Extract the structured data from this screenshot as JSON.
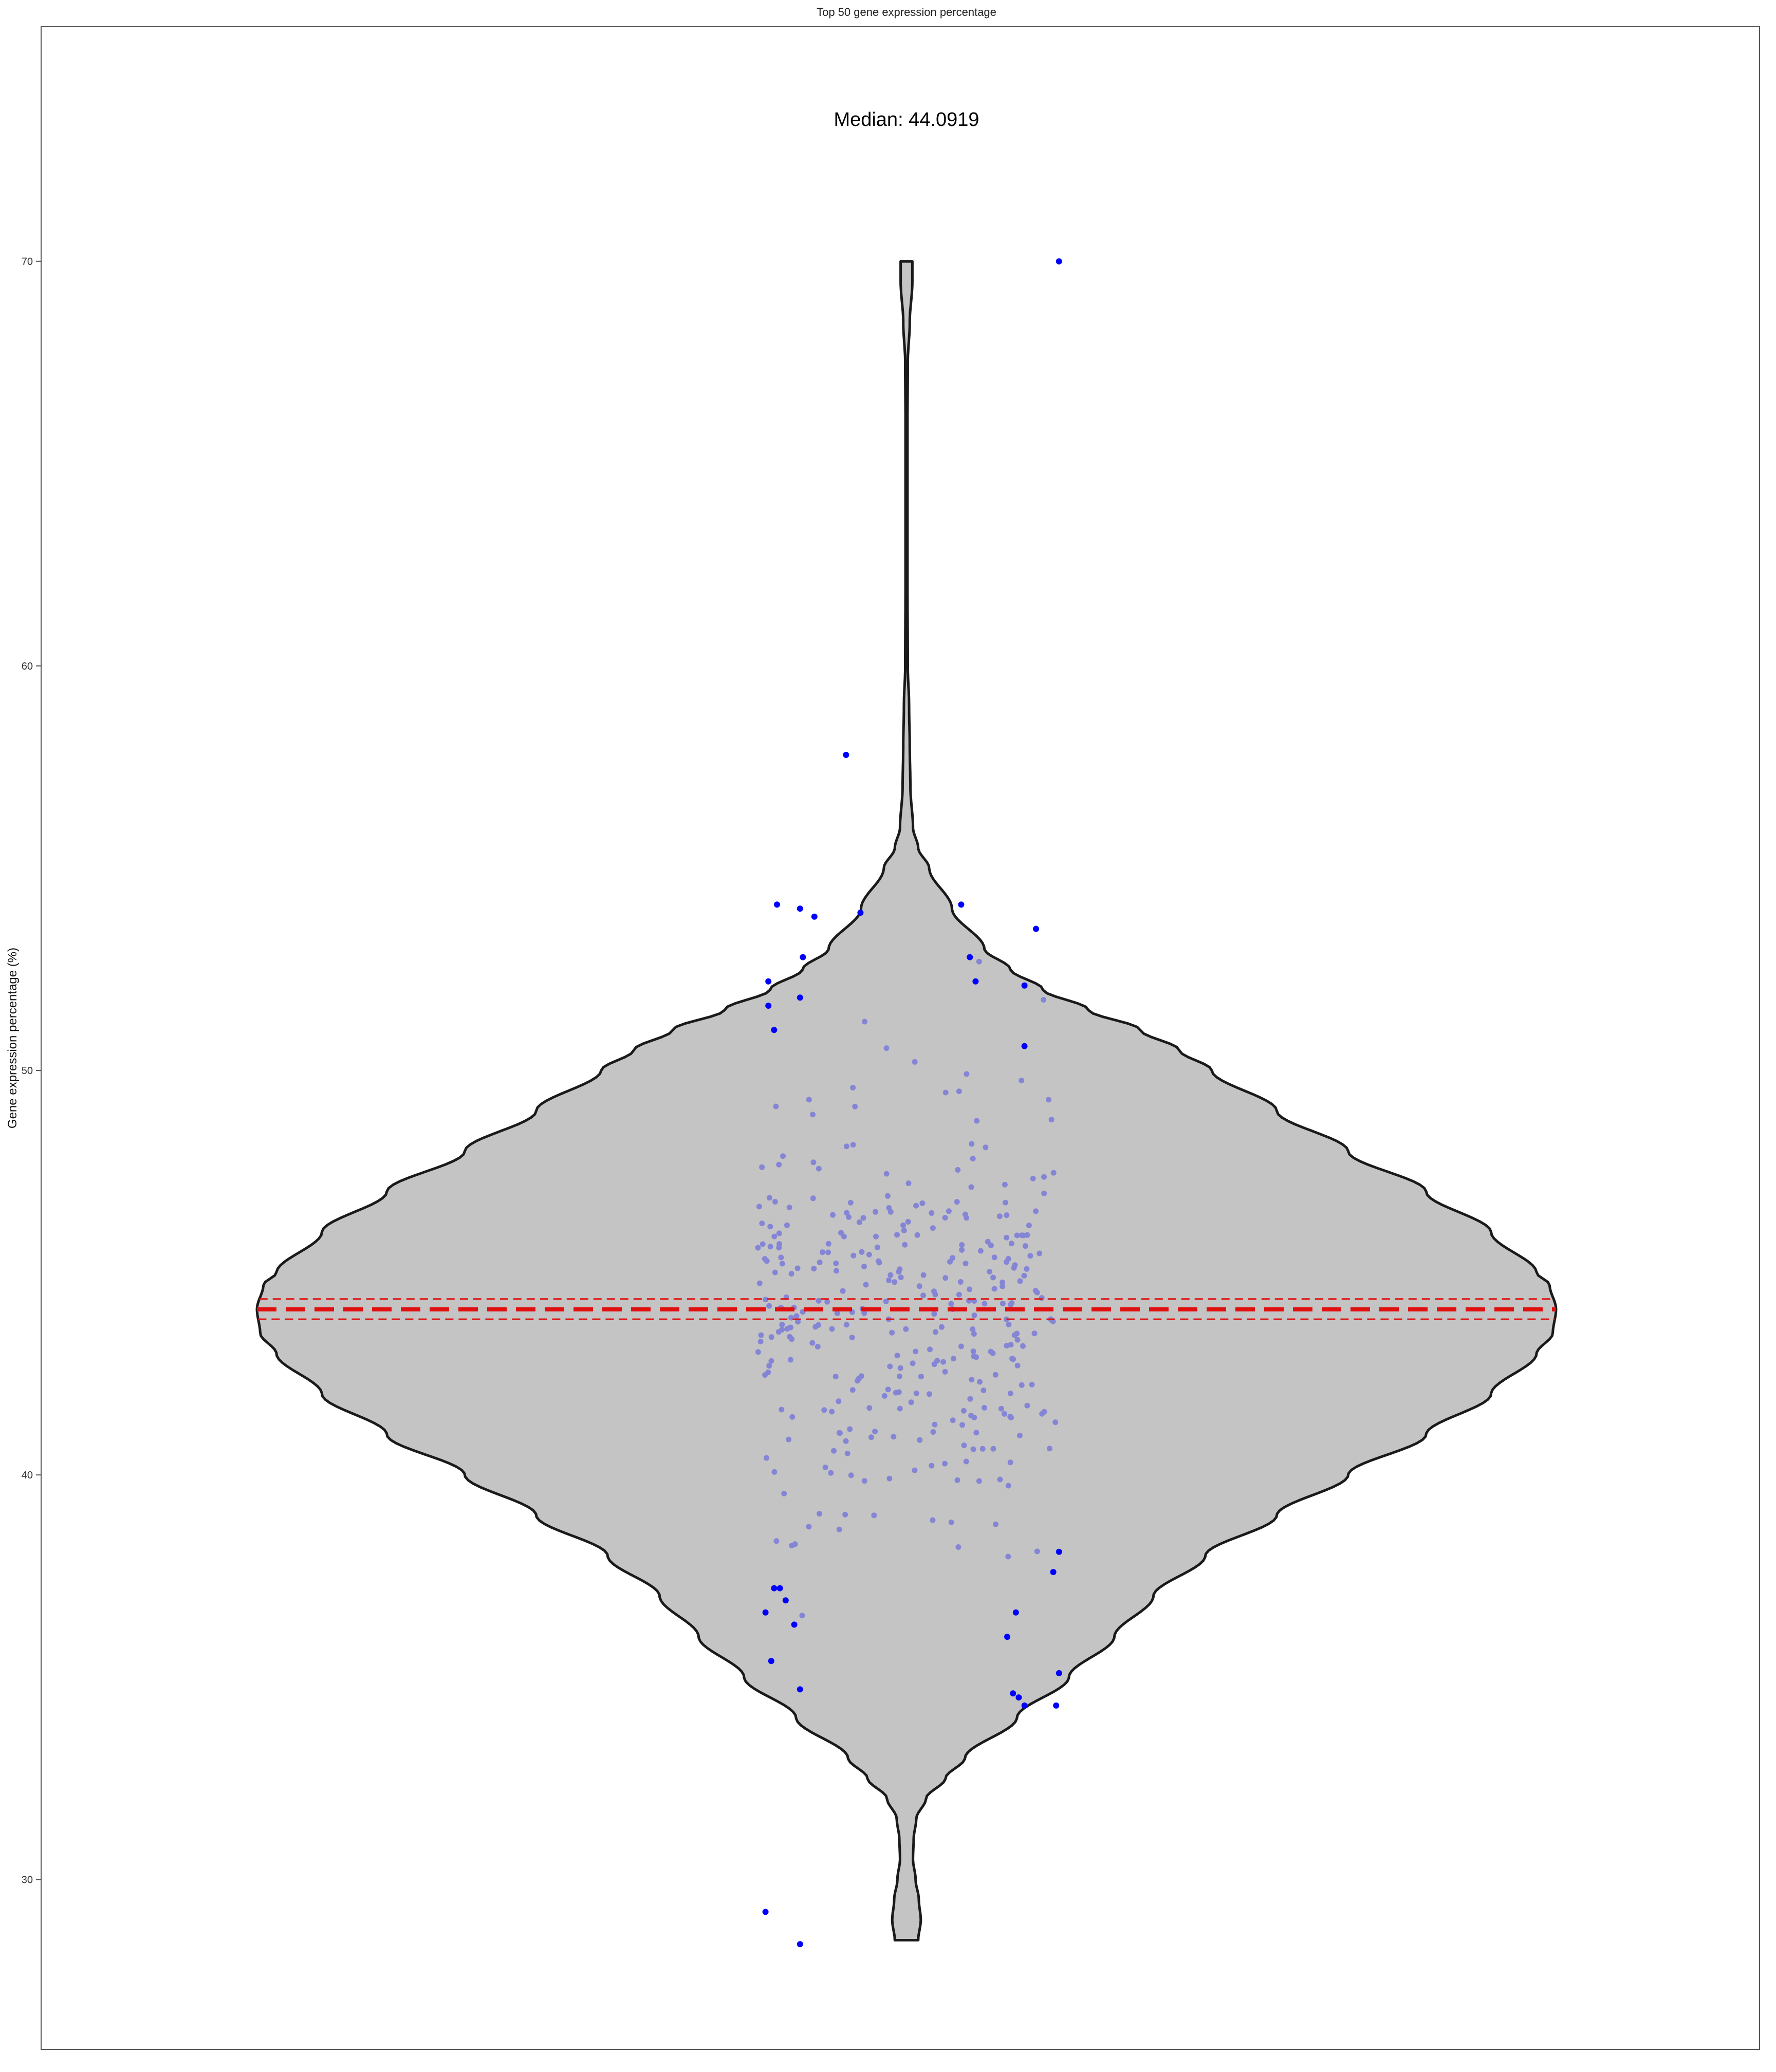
{
  "chart_data": {
    "type": "violin",
    "title": "Top 50 gene expression percentage",
    "xlabel": "",
    "ylabel": "Gene expression percentage (%)",
    "ylim": [
      25.8,
      75.8
    ],
    "y_ticks": [
      30,
      40,
      50,
      60,
      70
    ],
    "y_tick_labels": [
      "30",
      "40",
      "50",
      "60",
      "70"
    ],
    "grid": false,
    "annotation": "Median: 44.0919",
    "median": 44.0919,
    "median_band": [
      43.85,
      44.35
    ],
    "range": [
      28.5,
      70.0
    ],
    "density_profile": [
      [
        28.5,
        0.018
      ],
      [
        29.0,
        0.022
      ],
      [
        29.5,
        0.019
      ],
      [
        30.0,
        0.014
      ],
      [
        30.5,
        0.01
      ],
      [
        31.0,
        0.011
      ],
      [
        31.5,
        0.015
      ],
      [
        32.0,
        0.03
      ],
      [
        32.5,
        0.06
      ],
      [
        33.0,
        0.09
      ],
      [
        34.0,
        0.17
      ],
      [
        35.0,
        0.25
      ],
      [
        36.0,
        0.32
      ],
      [
        37.0,
        0.38
      ],
      [
        38.0,
        0.46
      ],
      [
        39.0,
        0.57
      ],
      [
        40.0,
        0.68
      ],
      [
        41.0,
        0.8
      ],
      [
        42.0,
        0.9
      ],
      [
        43.0,
        0.97
      ],
      [
        43.5,
        0.995
      ],
      [
        44.1,
        1.0
      ],
      [
        44.7,
        0.99
      ],
      [
        45.0,
        0.97
      ],
      [
        46.0,
        0.9
      ],
      [
        47.0,
        0.8
      ],
      [
        48.0,
        0.68
      ],
      [
        49.0,
        0.57
      ],
      [
        50.0,
        0.47
      ],
      [
        50.5,
        0.42
      ],
      [
        51.0,
        0.36
      ],
      [
        51.5,
        0.28
      ],
      [
        52.0,
        0.21
      ],
      [
        52.5,
        0.16
      ],
      [
        53.0,
        0.12
      ],
      [
        54.0,
        0.07
      ],
      [
        55.0,
        0.035
      ],
      [
        55.5,
        0.018
      ],
      [
        56.0,
        0.01
      ],
      [
        57.0,
        0.006
      ],
      [
        58.0,
        0.005
      ],
      [
        59.0,
        0.004
      ],
      [
        60.0,
        0.002
      ],
      [
        62.0,
        0.0015
      ],
      [
        64.0,
        0.0015
      ],
      [
        66.0,
        0.0015
      ],
      [
        67.5,
        0.002
      ],
      [
        68.5,
        0.005
      ],
      [
        69.5,
        0.009
      ],
      [
        70.0,
        0.009
      ]
    ],
    "outlier_points": [
      {
        "x": -0.49,
        "y": 36.6
      },
      {
        "x": -0.47,
        "y": 35.4
      },
      {
        "x": -0.46,
        "y": 37.2
      },
      {
        "x": -0.44,
        "y": 37.2
      },
      {
        "x": -0.42,
        "y": 36.9
      },
      {
        "x": -0.37,
        "y": 34.7
      },
      {
        "x": -0.39,
        "y": 36.3
      },
      {
        "x": -0.49,
        "y": 29.2
      },
      {
        "x": -0.37,
        "y": 28.4
      },
      {
        "x": -0.48,
        "y": 52.2
      },
      {
        "x": -0.48,
        "y": 51.6
      },
      {
        "x": -0.46,
        "y": 51.0
      },
      {
        "x": -0.45,
        "y": 54.1
      },
      {
        "x": -0.37,
        "y": 54.0
      },
      {
        "x": -0.36,
        "y": 52.8
      },
      {
        "x": -0.37,
        "y": 51.8
      },
      {
        "x": -0.32,
        "y": 53.8
      },
      {
        "x": -0.21,
        "y": 57.8
      },
      {
        "x": -0.16,
        "y": 53.9
      },
      {
        "x": 0.19,
        "y": 54.1
      },
      {
        "x": 0.22,
        "y": 52.8
      },
      {
        "x": 0.24,
        "y": 52.2
      },
      {
        "x": 0.41,
        "y": 52.1
      },
      {
        "x": 0.45,
        "y": 53.5
      },
      {
        "x": 0.41,
        "y": 50.6
      },
      {
        "x": 0.53,
        "y": 70.0
      },
      {
        "x": 0.35,
        "y": 36.0
      },
      {
        "x": 0.38,
        "y": 36.6
      },
      {
        "x": 0.37,
        "y": 34.6
      },
      {
        "x": 0.39,
        "y": 34.5
      },
      {
        "x": 0.41,
        "y": 34.3
      },
      {
        "x": 0.51,
        "y": 37.6
      },
      {
        "x": 0.53,
        "y": 38.1
      },
      {
        "x": 0.52,
        "y": 34.3
      },
      {
        "x": 0.53,
        "y": 35.1
      }
    ],
    "interior_point_count": 340,
    "interior_y_range": [
      34.2,
      53.9
    ],
    "colors": {
      "violin_fill": "#c4c4c4",
      "violin_outline": "#1a1a1a",
      "outlier_points": "#0000ff",
      "interior_points": "#8585d6",
      "median_line": "#e01010",
      "frame": "#555555"
    }
  }
}
